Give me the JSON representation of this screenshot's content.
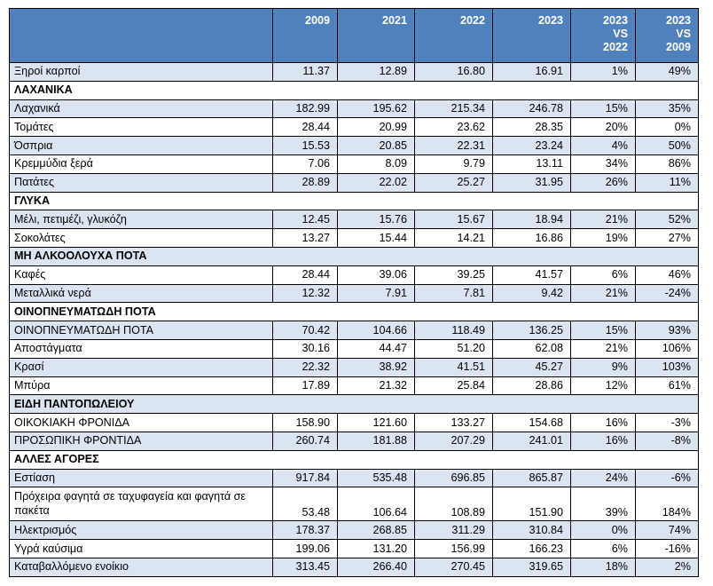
{
  "header": {
    "columns": [
      {
        "lines": [
          ""
        ]
      },
      {
        "lines": [
          "2009"
        ]
      },
      {
        "lines": [
          "2021"
        ]
      },
      {
        "lines": [
          "2022"
        ]
      },
      {
        "lines": [
          "2023"
        ]
      },
      {
        "lines": [
          "2023",
          "VS",
          "2022"
        ]
      },
      {
        "lines": [
          "2023",
          "VS",
          "2009"
        ]
      }
    ]
  },
  "rows": [
    {
      "type": "data",
      "label": "Ξηροί καρποί",
      "values": [
        "11.37",
        "12.89",
        "16.80",
        "16.91",
        "1%",
        "49%"
      ]
    },
    {
      "type": "section",
      "label": "ΛΑΧΑΝΙΚΑ"
    },
    {
      "type": "data",
      "label": "Λαχανικά",
      "values": [
        "182.99",
        "195.62",
        "215.34",
        "246.78",
        "15%",
        "35%"
      ]
    },
    {
      "type": "data",
      "label": "Τομάτες",
      "values": [
        "28.44",
        "20.99",
        "23.62",
        "28.35",
        "20%",
        "0%"
      ]
    },
    {
      "type": "data",
      "label": "Όσπρια",
      "values": [
        "15.53",
        "20.85",
        "22.31",
        "23.24",
        "4%",
        "50%"
      ]
    },
    {
      "type": "data",
      "label": "Κρεμμύδια ξερά",
      "values": [
        "7.06",
        "8.09",
        "9.79",
        "13.11",
        "34%",
        "86%"
      ]
    },
    {
      "type": "data",
      "label": "Πατάτες",
      "values": [
        "28.89",
        "22.02",
        "25.27",
        "31.95",
        "26%",
        "11%"
      ]
    },
    {
      "type": "section",
      "label": "ΓΛΥΚΑ"
    },
    {
      "type": "data",
      "label": "Μέλι, πετιμέζι, γλυκόζη",
      "values": [
        "12.45",
        "15.76",
        "15.67",
        "18.94",
        "21%",
        "52%"
      ]
    },
    {
      "type": "data",
      "label": "Σοκολάτες",
      "values": [
        "13.27",
        "15.44",
        "14.21",
        "16.86",
        "19%",
        "27%"
      ]
    },
    {
      "type": "section",
      "label": "ΜΗ ΑΛΚΟΟΛΟΥΧΑ ΠΟΤΑ"
    },
    {
      "type": "data",
      "label": "Καφές",
      "values": [
        "28.44",
        "39.06",
        "39.25",
        "41.57",
        "6%",
        "46%"
      ]
    },
    {
      "type": "data",
      "label": "Μεταλλικά νερά",
      "values": [
        "12.32",
        "7.91",
        "7.81",
        "9.42",
        "21%",
        "-24%"
      ]
    },
    {
      "type": "section",
      "label": "ΟΙΝΟΠΝΕΥΜΑΤΩΔΗ ΠΟΤΑ"
    },
    {
      "type": "data",
      "label": "ΟΙΝΟΠΝΕΥΜΑΤΩΔΗ ΠΟΤΑ",
      "values": [
        "70.42",
        "104.66",
        "118.49",
        "136.25",
        "15%",
        "93%"
      ]
    },
    {
      "type": "data",
      "label": "Αποστάγματα",
      "values": [
        "30.16",
        "44.47",
        "51.20",
        "62.08",
        "21%",
        "106%"
      ]
    },
    {
      "type": "data",
      "label": "Κρασί",
      "values": [
        "22.32",
        "38.92",
        "41.51",
        "45.27",
        "9%",
        "103%"
      ]
    },
    {
      "type": "data",
      "label": "Μπύρα",
      "values": [
        "17.89",
        "21.32",
        "25.84",
        "28.86",
        "12%",
        "61%"
      ]
    },
    {
      "type": "section",
      "label": "ΕΙΔΗ ΠΑΝΤΟΠΩΛΕΙΟΥ"
    },
    {
      "type": "data",
      "label": "ΟΙΚΟΚΙΑΚΗ ΦΡΟΝΙΔΑ",
      "values": [
        "158.90",
        "121.60",
        "133.27",
        "154.68",
        "16%",
        "-3%"
      ]
    },
    {
      "type": "data",
      "label": "ΠΡΟΣΩΠΙΚΗ ΦΡΟΝΤΙΔΑ",
      "values": [
        "260.74",
        "181.88",
        "207.29",
        "241.01",
        "16%",
        "-8%"
      ]
    },
    {
      "type": "section",
      "label": "ΑΛΛΕΣ ΑΓΟΡΕΣ"
    },
    {
      "type": "data",
      "label": "Εστίαση",
      "values": [
        "917.84",
        "535.48",
        "696.85",
        "865.87",
        "24%",
        "-6%"
      ]
    },
    {
      "type": "data",
      "label": "Πρόχειρα φαγητά σε ταχυφαγεία και φαγητά σε πακέτα",
      "values": [
        "53.48",
        "106.64",
        "108.89",
        "151.90",
        "39%",
        "184%"
      ],
      "tall": true
    },
    {
      "type": "data",
      "label": "Ηλεκτρισμός",
      "values": [
        "178.37",
        "268.85",
        "311.29",
        "310.84",
        "0%",
        "74%"
      ]
    },
    {
      "type": "data",
      "label": "Υγρά καύσιμα",
      "values": [
        "199.06",
        "131.20",
        "156.99",
        "166.23",
        "6%",
        "-16%"
      ]
    },
    {
      "type": "data",
      "label": "Καταβαλλόμενο ενοίκιο",
      "values": [
        "313.45",
        "266.40",
        "270.45",
        "319.65",
        "18%",
        "2%"
      ]
    }
  ],
  "colors": {
    "header_bg": "#4f81bd",
    "header_text": "#ffffff",
    "stripe_bg": "#dbe5f1",
    "row_bg": "#ffffff",
    "border": "#000000"
  }
}
